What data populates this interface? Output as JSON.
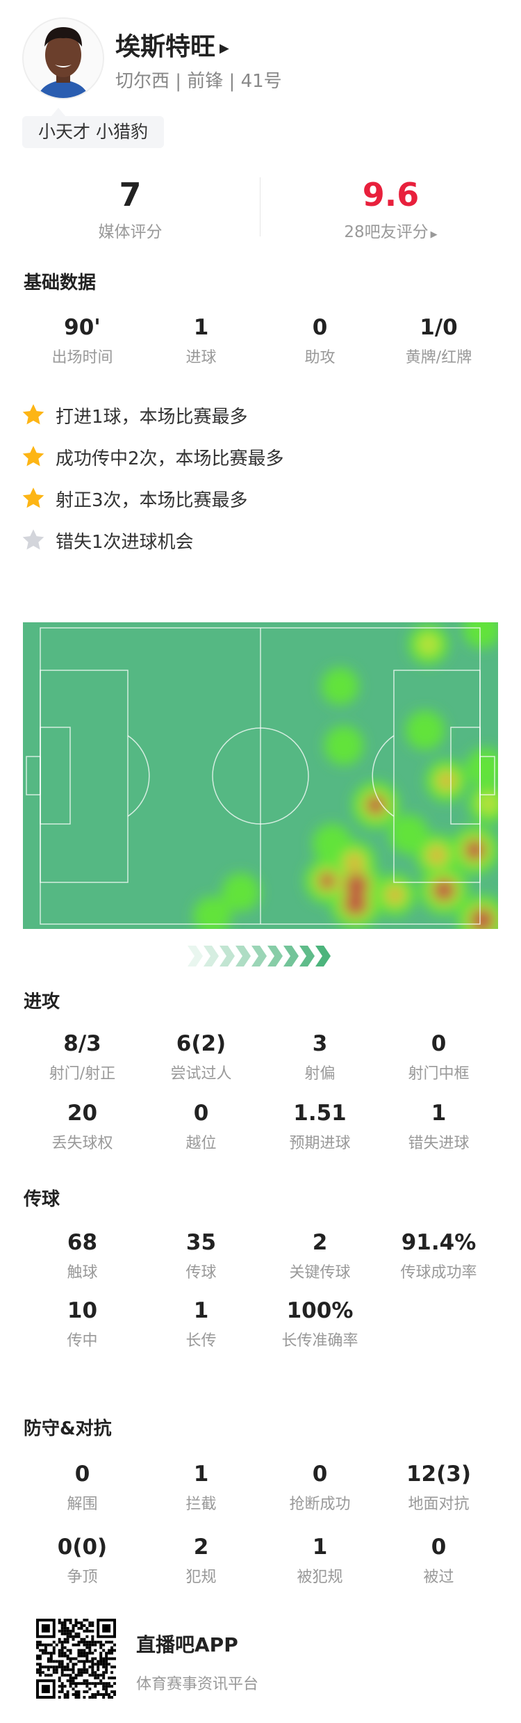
{
  "player": {
    "name": "埃斯特旺",
    "subtitle": "切尔西 | 前锋 | 41号",
    "tag": "小天才 小猎豹"
  },
  "ratings": {
    "media": {
      "value": "7",
      "label": "媒体评分"
    },
    "fans": {
      "value": "9.6",
      "label": "28吧友评分"
    },
    "fans_color": "#e8203c"
  },
  "basic": {
    "title": "基础数据",
    "stats": [
      {
        "value": "90'",
        "label": "出场时间"
      },
      {
        "value": "1",
        "label": "进球"
      },
      {
        "value": "0",
        "label": "助攻"
      },
      {
        "value": "1/0",
        "label": "黄牌/红牌"
      }
    ]
  },
  "highlights": [
    {
      "text": "打进1球，本场比赛最多",
      "icon": "star-gold"
    },
    {
      "text": "成功传中2次，本场比赛最多",
      "icon": "star-gold"
    },
    {
      "text": "射正3次，本场比赛最多",
      "icon": "star-gold"
    },
    {
      "text": "错失1次进球机会",
      "icon": "star-gray"
    }
  ],
  "heatmap": {
    "pitch_color": "#55b883",
    "attack_direction": "right",
    "points_meters": [
      [
        92.7,
        3.8,
        0.5
      ],
      [
        105.5,
        0.3,
        0.4
      ],
      [
        71.6,
        13.4,
        0.35
      ],
      [
        91.9,
        23.5,
        0.45
      ],
      [
        72.5,
        27,
        0.45
      ],
      [
        97,
        35.1,
        0.6
      ],
      [
        106.3,
        32,
        0.4
      ],
      [
        107,
        40.3,
        0.5
      ],
      [
        80.1,
        40.7,
        0.85
      ],
      [
        88,
        47.4,
        0.45
      ],
      [
        94.7,
        52.2,
        0.65
      ],
      [
        103.8,
        51,
        0.9
      ],
      [
        69.7,
        49.5,
        0.45
      ],
      [
        75,
        53.8,
        0.65
      ],
      [
        68.5,
        58.1,
        0.75
      ],
      [
        75.3,
        63.4,
        1.0
      ],
      [
        75.5,
        59,
        1.0
      ],
      [
        96.4,
        60.2,
        0.95
      ],
      [
        84.7,
        61.3,
        0.6
      ],
      [
        105.5,
        67.1,
        1.0
      ],
      [
        47.9,
        60.7,
        0.4
      ],
      [
        41.1,
        66.1,
        0.4
      ]
    ]
  },
  "attack": {
    "title": "进攻",
    "stats": [
      {
        "value": "8/3",
        "label": "射门/射正"
      },
      {
        "value": "6(2)",
        "label": "尝试过人"
      },
      {
        "value": "3",
        "label": "射偏"
      },
      {
        "value": "0",
        "label": "射门中框"
      },
      {
        "value": "20",
        "label": "丢失球权"
      },
      {
        "value": "0",
        "label": "越位"
      },
      {
        "value": "1.51",
        "label": "预期进球"
      },
      {
        "value": "1",
        "label": "错失进球"
      }
    ]
  },
  "passing": {
    "title": "传球",
    "stats": [
      {
        "value": "68",
        "label": "触球"
      },
      {
        "value": "35",
        "label": "传球"
      },
      {
        "value": "2",
        "label": "关键传球"
      },
      {
        "value": "91.4%",
        "label": "传球成功率"
      },
      {
        "value": "10",
        "label": "传中"
      },
      {
        "value": "1",
        "label": "长传"
      },
      {
        "value": "100%",
        "label": "长传准确率"
      }
    ]
  },
  "defense": {
    "title": "防守&对抗",
    "stats": [
      {
        "value": "0",
        "label": "解围"
      },
      {
        "value": "1",
        "label": "拦截"
      },
      {
        "value": "0",
        "label": "抢断成功"
      },
      {
        "value": "12(3)",
        "label": "地面对抗"
      },
      {
        "value": "0(0)",
        "label": "争顶"
      },
      {
        "value": "2",
        "label": "犯规"
      },
      {
        "value": "1",
        "label": "被犯规"
      },
      {
        "value": "0",
        "label": "被过"
      }
    ]
  },
  "footer": {
    "app_name": "直播吧APP",
    "app_desc": "体育赛事资讯平台"
  }
}
